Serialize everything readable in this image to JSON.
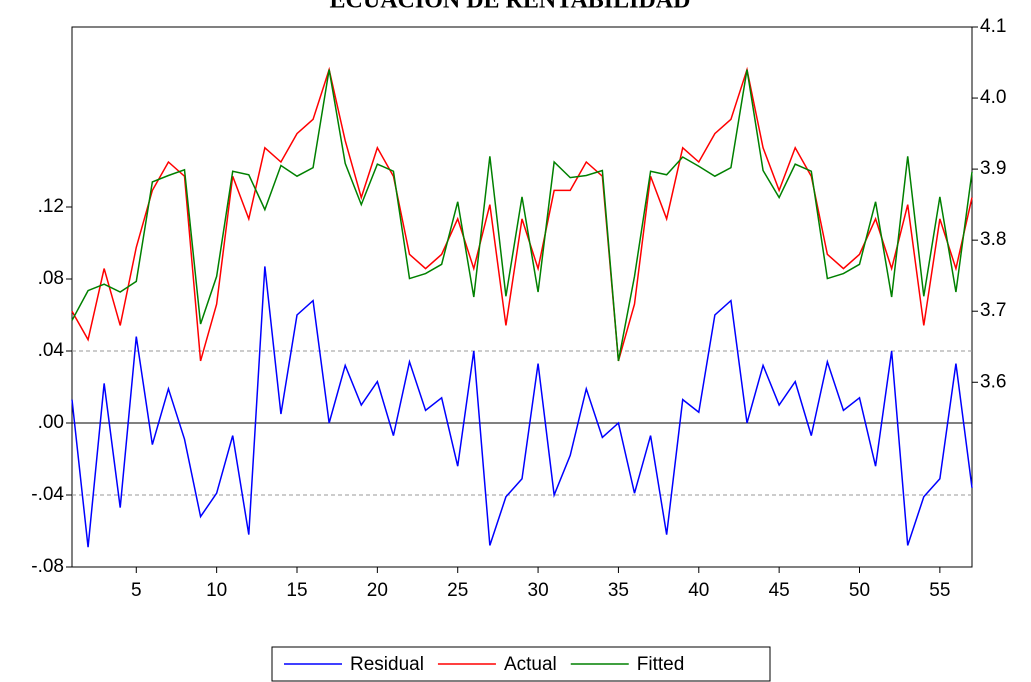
{
  "chart_data": {
    "type": "line",
    "title": "ECUACION DE RENTABILIDAD",
    "x": [
      1,
      2,
      3,
      4,
      5,
      6,
      7,
      8,
      9,
      10,
      11,
      12,
      13,
      14,
      15,
      16,
      17,
      18,
      19,
      20,
      21,
      22,
      23,
      24,
      25,
      26,
      27,
      28,
      29,
      30,
      31,
      32,
      33,
      34,
      35,
      36,
      37,
      38,
      39,
      40,
      41,
      42,
      43,
      44,
      45,
      46,
      47,
      48,
      49,
      50,
      51,
      52,
      53,
      54,
      55,
      56,
      57
    ],
    "xlim": [
      1,
      57
    ],
    "xticks": [
      5,
      10,
      15,
      20,
      25,
      30,
      35,
      40,
      45,
      50,
      55
    ],
    "ylim": [
      -0.08,
      0.22
    ],
    "yticks": [
      {
        "value": -0.08,
        "label": "-.08"
      },
      {
        "value": -0.04,
        "label": "-.04"
      },
      {
        "value": 0,
        "label": ".00"
      },
      {
        "value": 0.04,
        "label": ".04"
      },
      {
        "value": 0.08,
        "label": ".08"
      },
      {
        "value": 0.12,
        "label": ".12"
      }
    ],
    "y2lim": [
      3.34,
      4.1
    ],
    "y2ticks": [
      3.6,
      3.7,
      3.8,
      3.9,
      {
        "value": 4,
        "label": "4.0"
      },
      4.1
    ],
    "std_error_band": [
      -0.04,
      0.04
    ],
    "legend": "bottom",
    "series": [
      {
        "name": "Residual",
        "color": "#0000ff",
        "axis": "y",
        "values": [
          0.013,
          -0.069,
          0.022,
          -0.047,
          0.048,
          -0.012,
          0.019,
          -0.009,
          -0.052,
          -0.039,
          -0.007,
          -0.062,
          0.087,
          0.005,
          0.06,
          0.068,
          0.0,
          0.032,
          0.01,
          0.023,
          -0.007,
          0.034,
          0.007,
          0.014,
          -0.024,
          0.04,
          -0.068,
          -0.041,
          -0.031,
          0.033,
          -0.04,
          -0.018,
          0.019,
          -0.008,
          0.0,
          -0.039,
          -0.007,
          -0.062,
          0.013,
          0.006,
          0.06,
          0.068,
          0.0,
          0.032,
          0.01,
          0.023,
          -0.007,
          0.034,
          0.007,
          0.014,
          -0.024,
          0.04,
          -0.068,
          -0.041,
          -0.031,
          0.033,
          -0.036
        ]
      },
      {
        "name": "Actual",
        "color": "#ff0000",
        "axis": "y2",
        "values": [
          3.7,
          3.66,
          3.76,
          3.68,
          3.79,
          3.87,
          3.91,
          3.89,
          3.63,
          3.71,
          3.89,
          3.83,
          3.93,
          3.91,
          3.95,
          3.97,
          4.04,
          3.94,
          3.86,
          3.93,
          3.89,
          3.78,
          3.76,
          3.78,
          3.83,
          3.76,
          3.85,
          3.68,
          3.83,
          3.76,
          3.87,
          3.87,
          3.91,
          3.89,
          3.63,
          3.71,
          3.89,
          3.83,
          3.93,
          3.91,
          3.95,
          3.97,
          4.04,
          3.93,
          3.87,
          3.93,
          3.89,
          3.78,
          3.76,
          3.78,
          3.83,
          3.76,
          3.85,
          3.68,
          3.83,
          3.76,
          3.86
        ]
      },
      {
        "name": "Fitted",
        "color": "#008000",
        "axis": "y2",
        "values": [
          3.687,
          3.729,
          3.738,
          3.727,
          3.742,
          3.882,
          3.891,
          3.899,
          3.682,
          3.749,
          3.897,
          3.892,
          3.843,
          3.905,
          3.89,
          3.902,
          4.04,
          3.908,
          3.85,
          3.907,
          3.897,
          3.746,
          3.753,
          3.766,
          3.854,
          3.72,
          3.918,
          3.721,
          3.861,
          3.727,
          3.91,
          3.888,
          3.891,
          3.898,
          3.63,
          3.749,
          3.897,
          3.892,
          3.917,
          3.904,
          3.89,
          3.902,
          4.04,
          3.898,
          3.86,
          3.907,
          3.897,
          3.746,
          3.753,
          3.766,
          3.854,
          3.72,
          3.918,
          3.721,
          3.861,
          3.727,
          3.896
        ]
      }
    ]
  }
}
